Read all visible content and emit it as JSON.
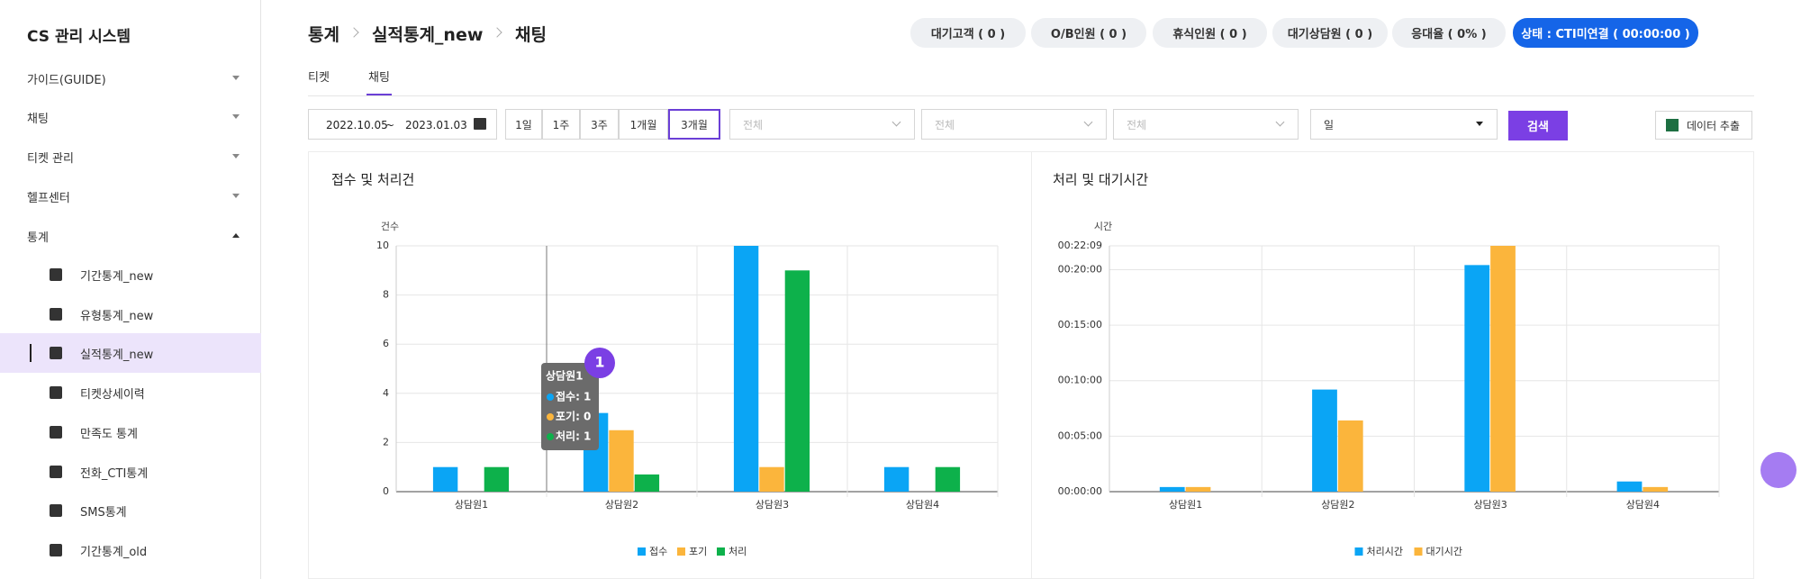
{
  "sidebar": {
    "title": "CS 관리 시스템",
    "menu": [
      "가이드(GUIDE)",
      "채팅",
      "티켓 관리",
      "헬프센터",
      "통계"
    ],
    "submenu": [
      "기간통계_new",
      "유형통계_new",
      "실적통계_new",
      "티켓상세이력",
      "만족도 통계",
      "전화_CTI통계",
      "SMS통계",
      "기간통계_old"
    ]
  },
  "breadcrumb": [
    "통계",
    "실적통계_new",
    "채팅"
  ],
  "status": [
    "대기고객 ( 0 )",
    "O/B인원 ( 0 )",
    "휴식인원 ( 0 )",
    "대기상담원 ( 0 )",
    "응대율 ( 0% )",
    "상태 : CTI미연결 ( 00:00:00 )"
  ],
  "tabs": [
    "티켓",
    "채팅"
  ],
  "filters": {
    "start": "2022.10.05",
    "separator": "~",
    "end": "2023.01.03",
    "periods": [
      "1일",
      "1주",
      "3주",
      "1개월",
      "3개월"
    ],
    "selects": [
      "전체",
      "전체",
      "전체",
      "일"
    ],
    "search": "검색",
    "export": "데이터 추출"
  },
  "tooltip": {
    "badge": "1",
    "title": "상담원1",
    "lines": [
      "접수: 1",
      "포기: 0",
      "처리: 1"
    ]
  },
  "chart_data": [
    {
      "type": "bar",
      "title": "접수 및 처리건",
      "y_label": "건수",
      "categories": [
        "상담원1",
        "상담원2",
        "상담원3",
        "상담원4"
      ],
      "series": [
        {
          "name": "접수",
          "color": "#0aa5f5",
          "values": [
            1,
            3.2,
            10,
            1
          ]
        },
        {
          "name": "포기",
          "color": "#fbb53c",
          "values": [
            0,
            2.5,
            1,
            0
          ]
        },
        {
          "name": "처리",
          "color": "#0db14b",
          "values": [
            1,
            0.7,
            9,
            1
          ]
        }
      ],
      "ylim": [
        0,
        10
      ],
      "yticks": [
        0,
        2,
        4,
        6,
        8,
        10
      ],
      "grid": true,
      "legend": "bottom"
    },
    {
      "type": "bar",
      "title": "처리 및 대기시간",
      "y_label": "시간",
      "categories": [
        "상담원1",
        "상담원2",
        "상담원3",
        "상담원4"
      ],
      "series": [
        {
          "name": "처리시간",
          "color": "#0aa5f5",
          "values": [
            25,
            552,
            1225,
            55
          ]
        },
        {
          "name": "대기시간",
          "color": "#fbb53c",
          "values": [
            25,
            385,
            1329,
            25
          ]
        }
      ],
      "ylim": [
        0,
        1329
      ],
      "yticks": [
        {
          "value": 0,
          "label": "00:00:00"
        },
        {
          "value": 300,
          "label": "00:05:00"
        },
        {
          "value": 600,
          "label": "00:10:00"
        },
        {
          "value": 900,
          "label": "00:15:00"
        },
        {
          "value": 1200,
          "label": "00:20:00"
        },
        {
          "value": 1329,
          "label": "00:22:09"
        }
      ],
      "grid": true,
      "legend": "bottom"
    }
  ]
}
